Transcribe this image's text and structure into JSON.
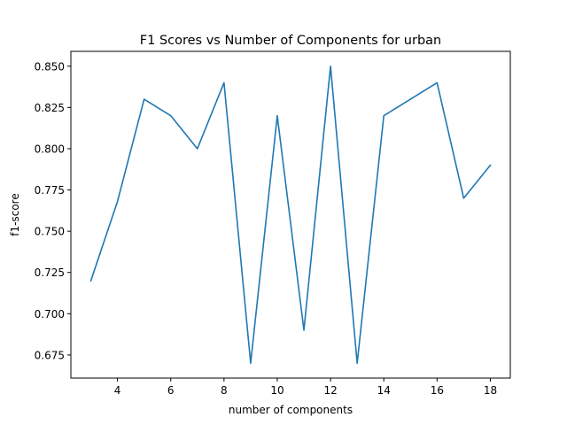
{
  "chart_data": {
    "type": "line",
    "title": "F1 Scores vs Number of Components for urban",
    "xlabel": "number of components",
    "ylabel": "f1-score",
    "xlim": [
      2.25,
      18.75
    ],
    "ylim": [
      0.661,
      0.859
    ],
    "xticks": [
      4,
      6,
      8,
      10,
      12,
      14,
      16,
      18
    ],
    "xtick_labels": [
      "4",
      "6",
      "8",
      "10",
      "12",
      "14",
      "16",
      "18"
    ],
    "yticks": [
      0.675,
      0.7,
      0.725,
      0.75,
      0.775,
      0.8,
      0.825,
      0.85
    ],
    "ytick_labels": [
      "0.675",
      "0.700",
      "0.725",
      "0.750",
      "0.775",
      "0.800",
      "0.825",
      "0.850"
    ],
    "grid": false,
    "series": [
      {
        "color": "#1f77b4",
        "x": [
          3,
          4,
          5,
          6,
          7,
          8,
          9,
          10,
          11,
          12,
          13,
          14,
          15,
          16,
          17,
          18
        ],
        "y": [
          0.72,
          0.768,
          0.83,
          0.82,
          0.8,
          0.84,
          0.67,
          0.82,
          0.69,
          0.85,
          0.67,
          0.82,
          0.83,
          0.84,
          0.77,
          0.79
        ]
      }
    ]
  }
}
